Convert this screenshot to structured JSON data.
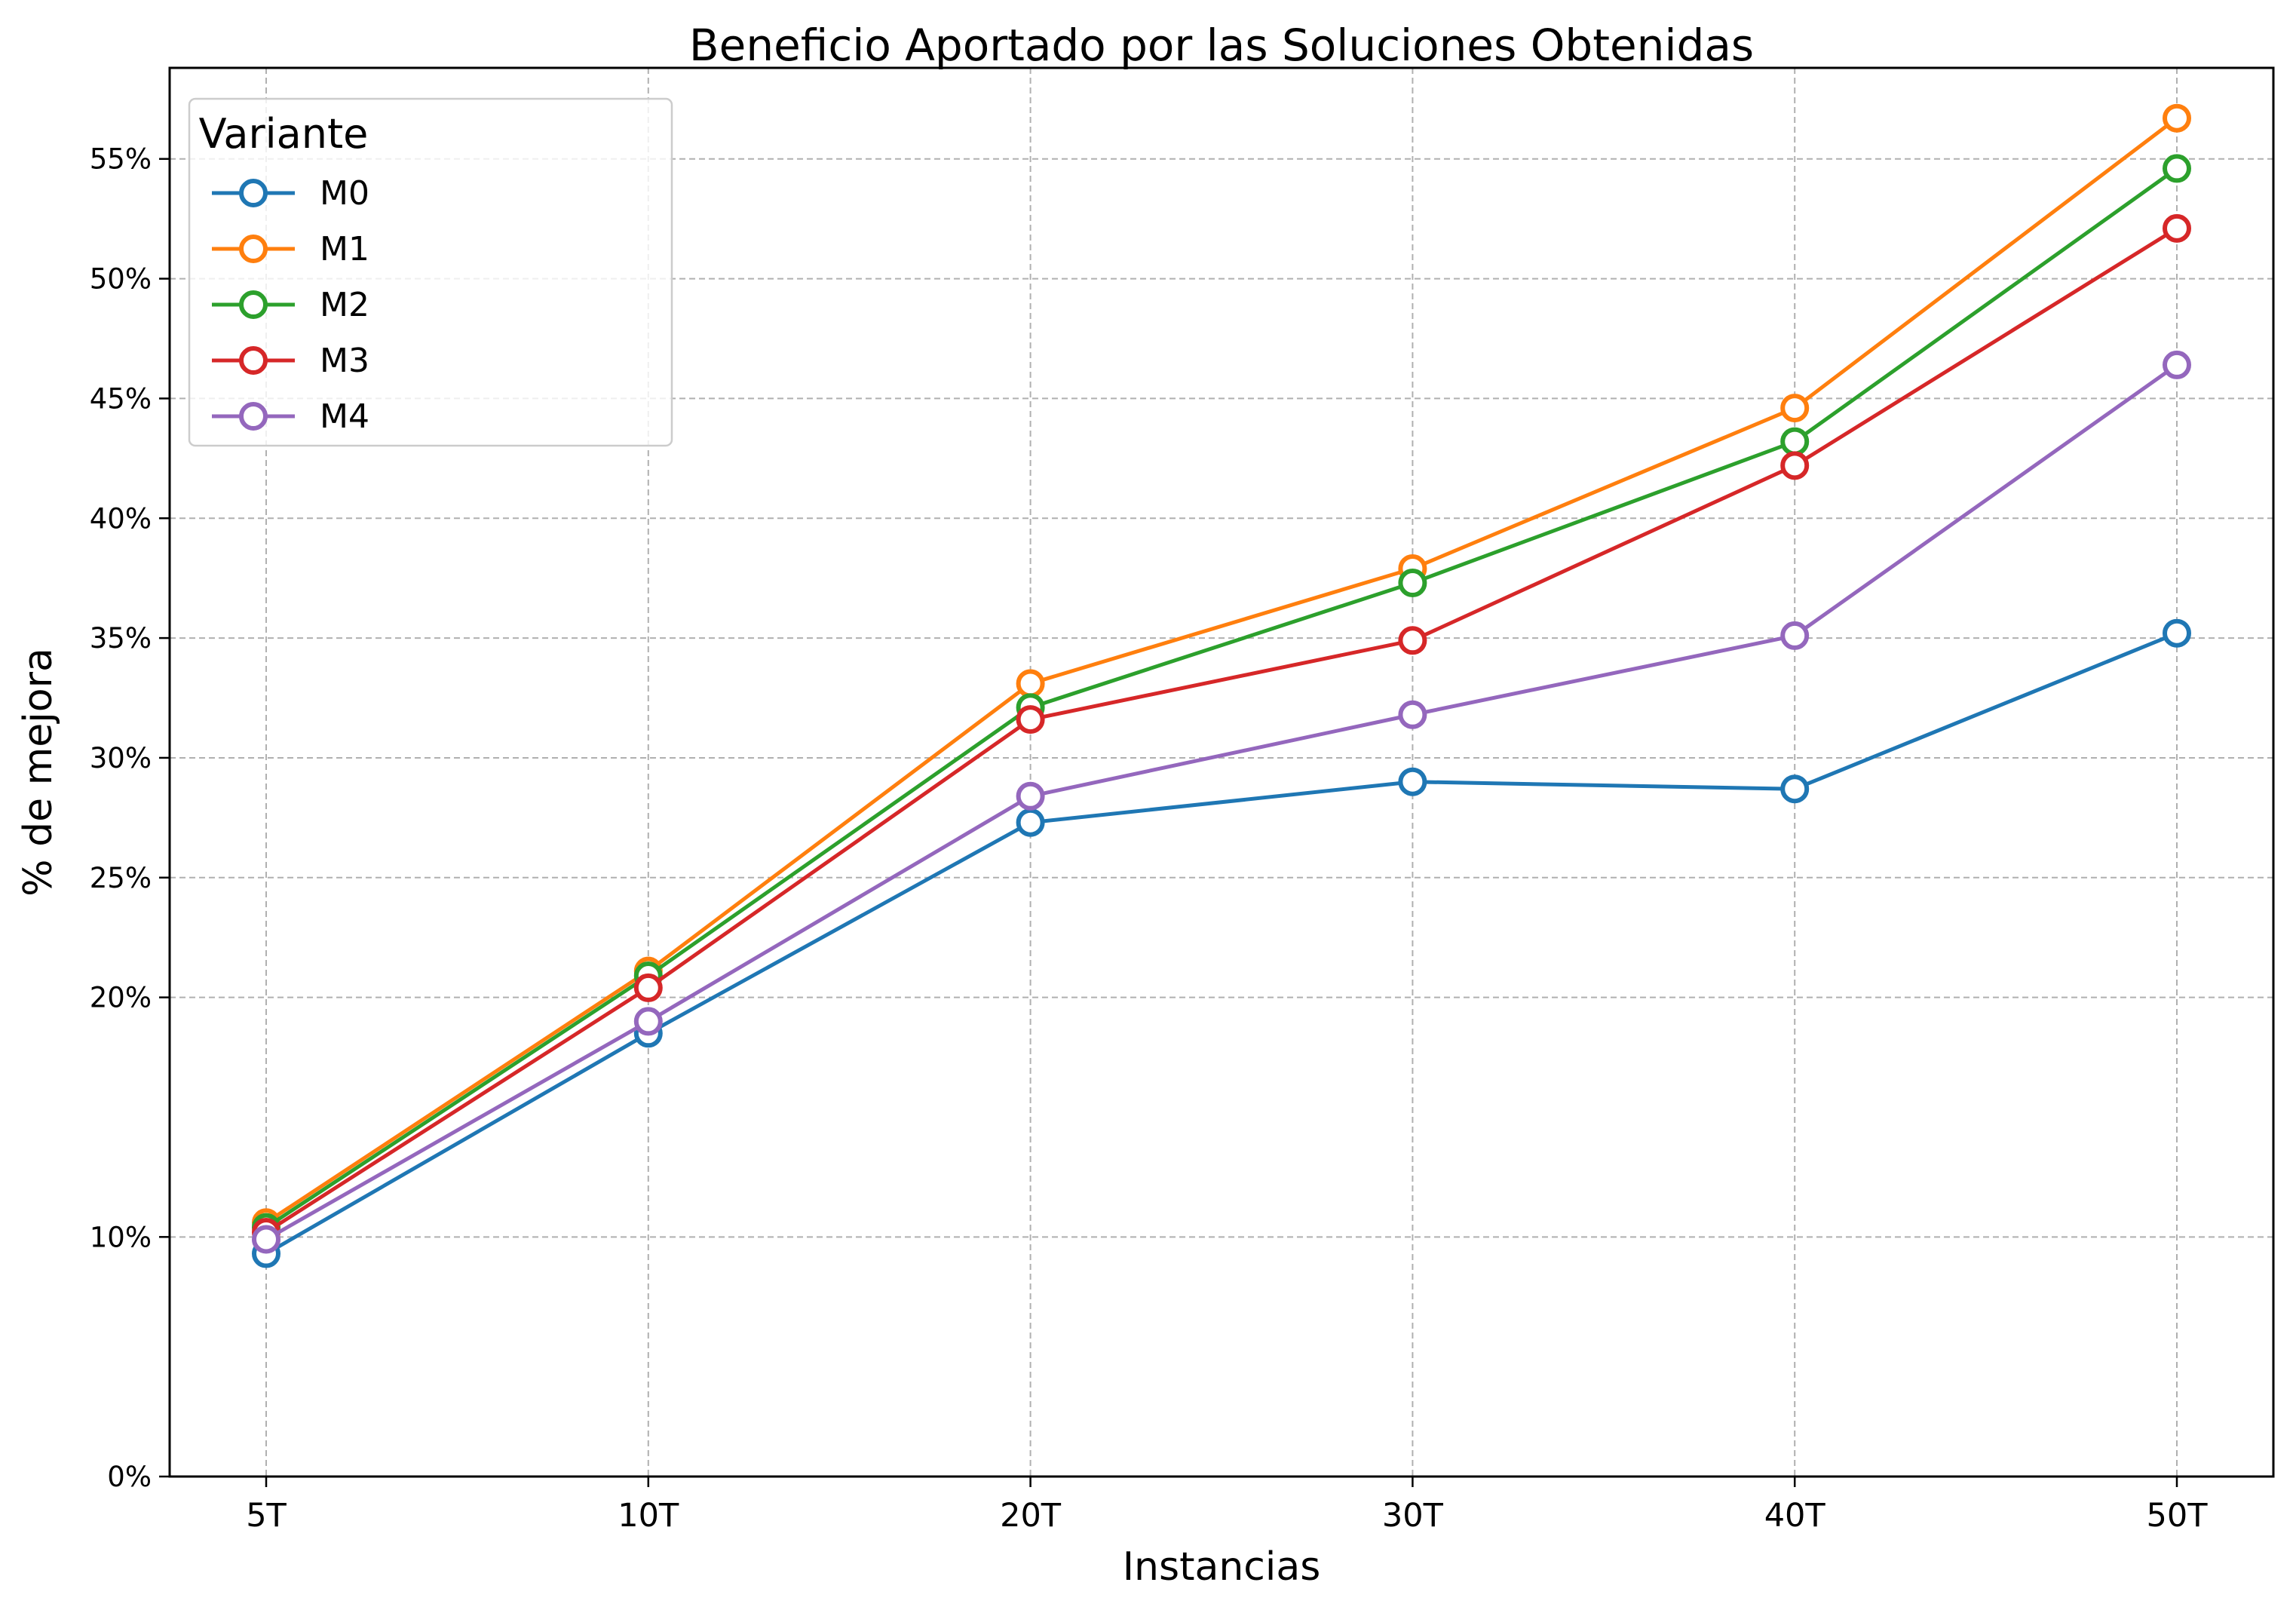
{
  "chart_data": {
    "type": "line",
    "title": "Beneficio Aportado por las Soluciones Obtenidas",
    "xlabel": "Instancias",
    "ylabel": "% de mejora",
    "categories": [
      "5T",
      "10T",
      "20T",
      "30T",
      "40T",
      "50T"
    ],
    "yticks": [
      0,
      10,
      20,
      25,
      30,
      35,
      40,
      45,
      50,
      55
    ],
    "ytick_labels": [
      "0%",
      "10%",
      "20%",
      "25%",
      "30%",
      "35%",
      "40%",
      "45%",
      "50%",
      "55%"
    ],
    "ylim": [
      0,
      58.8
    ],
    "grid": true,
    "legend": {
      "title": "Variante",
      "placement": "top-left"
    },
    "series": [
      {
        "name": "M0",
        "color": "#1f77b4",
        "values": [
          9.3,
          18.5,
          27.3,
          29.0,
          28.7,
          35.2
        ]
      },
      {
        "name": "M1",
        "color": "#ff7f0e",
        "values": [
          10.6,
          21.1,
          33.1,
          37.9,
          44.6,
          56.7
        ]
      },
      {
        "name": "M2",
        "color": "#2ca02c",
        "values": [
          10.4,
          20.9,
          32.1,
          37.3,
          43.2,
          54.6
        ]
      },
      {
        "name": "M3",
        "color": "#d62728",
        "values": [
          10.2,
          20.4,
          31.6,
          34.9,
          42.2,
          52.1
        ]
      },
      {
        "name": "M4",
        "color": "#9467bd",
        "values": [
          9.9,
          19.0,
          28.4,
          31.8,
          35.1,
          46.4
        ]
      }
    ]
  }
}
